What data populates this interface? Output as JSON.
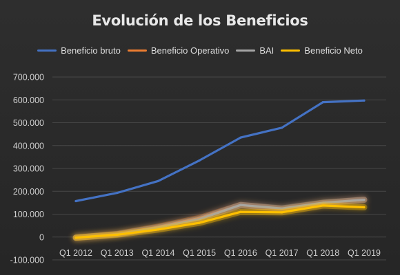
{
  "chart_data": {
    "type": "line",
    "title": "Evolución de los Beneficios",
    "categories": [
      "Q1 2012",
      "Q1 2013",
      "Q1 2014",
      "Q1 2015",
      "Q1 2016",
      "Q1 2017",
      "Q1 2018",
      "Q1 2019"
    ],
    "ylim": [
      -100000,
      700000
    ],
    "yticks": [
      700000,
      600000,
      500000,
      400000,
      300000,
      200000,
      100000,
      0,
      -100000
    ],
    "ytick_labels": [
      "700.000",
      "600.000",
      "500.000",
      "400.000",
      "300.000",
      "200.000",
      "100.000",
      "0",
      "-100.000"
    ],
    "grid": true,
    "legend_position": "top",
    "series": [
      {
        "name": "Beneficio bruto",
        "color": "#4472c4",
        "values": [
          157000,
          193000,
          245000,
          335000,
          435000,
          478000,
          590000,
          597000
        ]
      },
      {
        "name": "Beneficio Operativo",
        "color": "#ed7d31",
        "values": [
          -3000,
          13000,
          45000,
          83000,
          140000,
          123000,
          148000,
          163000
        ]
      },
      {
        "name": "BAI",
        "color": "#a5a5a5",
        "values": [
          -3000,
          12000,
          42000,
          78000,
          140000,
          125000,
          150000,
          163000
        ]
      },
      {
        "name": "Beneficio Neto",
        "color": "#ffc000",
        "values": [
          -3000,
          10000,
          33000,
          62000,
          110000,
          108000,
          138000,
          130000
        ]
      }
    ]
  }
}
